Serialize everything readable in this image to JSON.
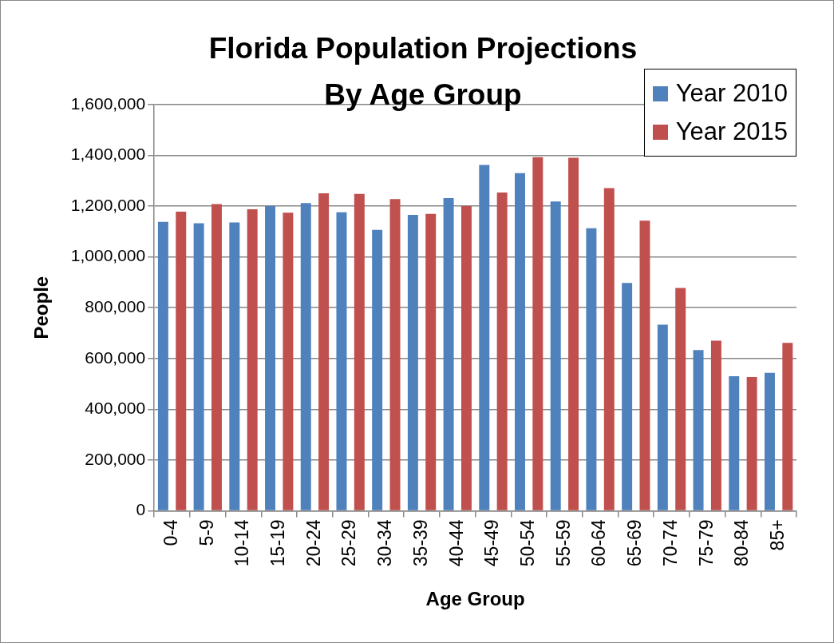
{
  "chart_data": {
    "type": "bar",
    "title": "Florida Population Projections\nBy Age Group",
    "xlabel": "Age Group",
    "ylabel": "People",
    "categories": [
      "0-4",
      "5-9",
      "10-14",
      "15-19",
      "20-24",
      "25-29",
      "30-34",
      "35-39",
      "40-44",
      "45-49",
      "50-54",
      "55-59",
      "60-64",
      "65-69",
      "70-74",
      "75-79",
      "80-84",
      "85+"
    ],
    "series": [
      {
        "name": "Year 2010",
        "color": "#4f81bd",
        "values": [
          1138000,
          1133000,
          1136000,
          1200000,
          1212000,
          1176000,
          1107000,
          1166000,
          1232000,
          1362000,
          1330000,
          1218000,
          1113000,
          897000,
          733000,
          633000,
          530000,
          543000
        ]
      },
      {
        "name": "Year 2015",
        "color": "#c0504d",
        "values": [
          1178000,
          1208000,
          1188000,
          1174000,
          1251000,
          1248000,
          1228000,
          1170000,
          1200000,
          1254000,
          1393000,
          1391000,
          1271000,
          1143000,
          878000,
          670000,
          527000,
          661000
        ]
      }
    ],
    "ylim": [
      0,
      1600000
    ],
    "yticks": [
      0,
      {
        "value": 200000,
        "label": "200,000"
      },
      {
        "value": 400000,
        "label": "400,000"
      },
      {
        "value": 600000,
        "label": "600,000"
      },
      {
        "value": 800000,
        "label": "800,000"
      },
      {
        "value": 1000000,
        "label": "1,000,000"
      },
      {
        "value": 1200000,
        "label": "1,200,000"
      },
      {
        "value": 1400000,
        "label": "1,400,000"
      },
      {
        "value": 1600000,
        "label": "1,600,000"
      }
    ],
    "grid": "y",
    "legend": "top right"
  }
}
